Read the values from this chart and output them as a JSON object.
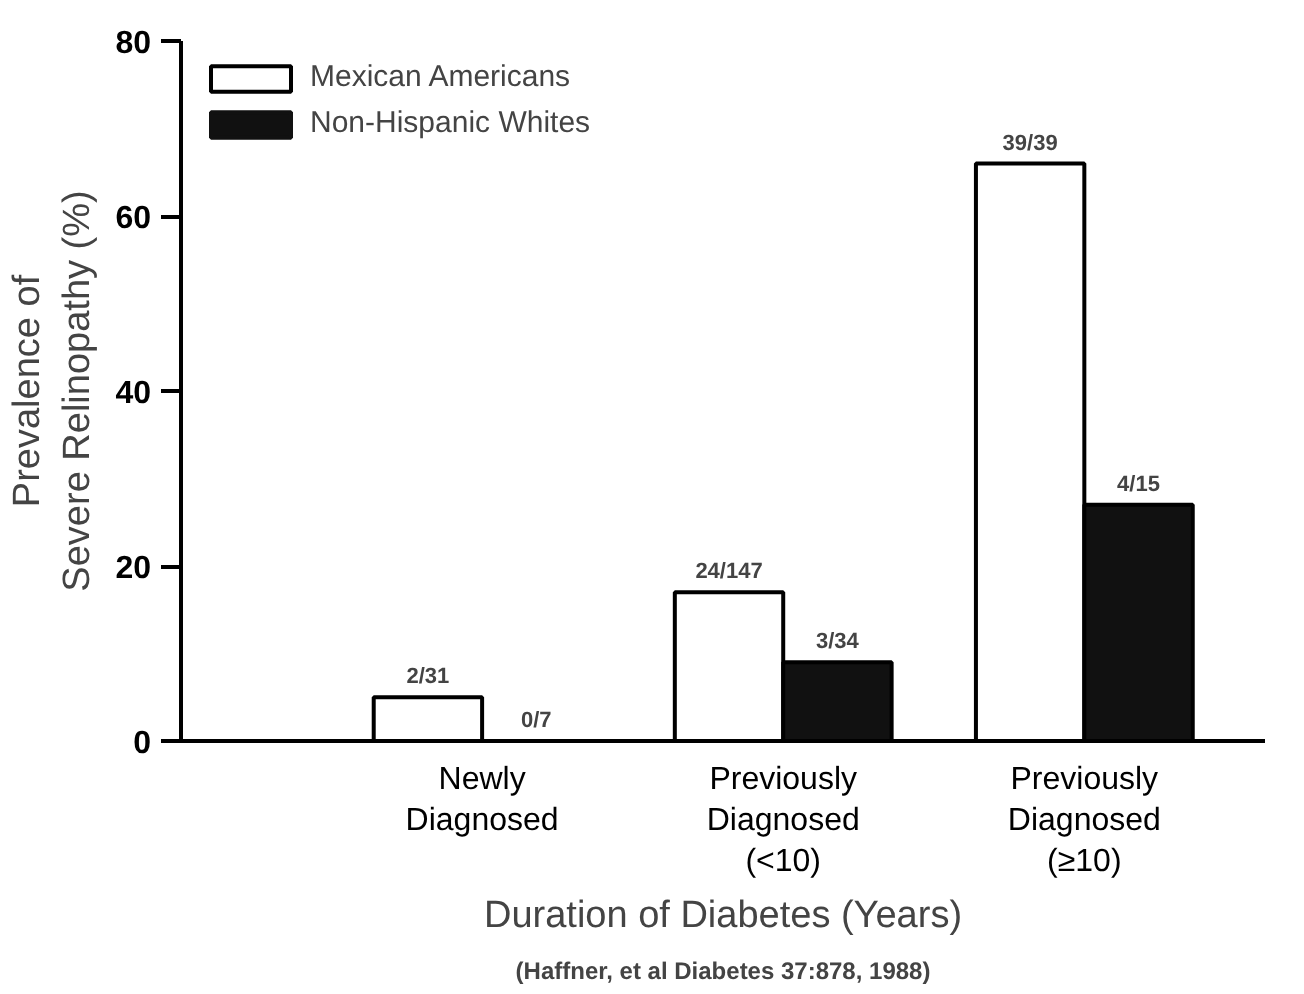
{
  "chart_data": {
    "type": "bar",
    "xlabel": "Duration of Diabetes (Years)",
    "ylabel": "Prevalence of\nSevere Relinopathy (%)",
    "categories": [
      "Newly\nDiagnosed",
      "Previously\nDiagnosed\n(<10)",
      "Previously\nDiagnosed\n(≥10)"
    ],
    "series": [
      {
        "name": "Mexican Americans",
        "color": "#ffffff",
        "values": [
          5,
          17,
          66
        ],
        "value_labels": [
          "2/31",
          "24/147",
          "39/39"
        ]
      },
      {
        "name": "Non-Hispanic Whites",
        "color": "#111111",
        "values": [
          0,
          9,
          27
        ],
        "value_labels": [
          "0/7",
          "3/34",
          "4/15"
        ]
      }
    ],
    "ylim": [
      0,
      80
    ],
    "yticks": [
      0,
      20,
      40,
      60,
      80
    ],
    "grid": false,
    "legend": "top left",
    "annotations": [
      "(Haffner, et al Diabetes 37:878, 1988)"
    ]
  }
}
